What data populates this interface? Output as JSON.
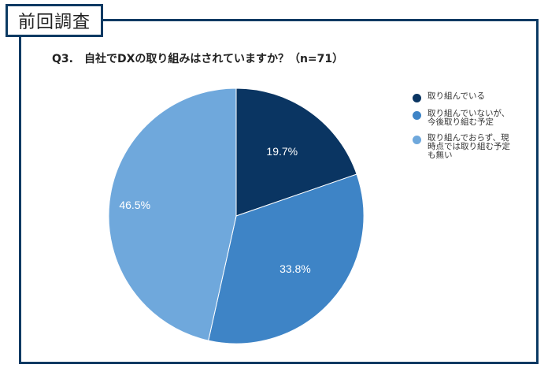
{
  "header": {
    "tag_label": "前回調査"
  },
  "chart_data": {
    "type": "pie",
    "title": "Q3.　自社でDXの取り組みはされていますか？（n=71）",
    "categories": [
      "取り組んでいる",
      "取り組んでいないが、\n今後取り組む予定",
      "取り組んでおらず、現\n時点では取り組む予定\nも無い"
    ],
    "values": [
      19.7,
      33.8,
      46.5
    ],
    "labels": [
      "19.7%",
      "33.8%",
      "46.5%"
    ],
    "colors": [
      "#0a3562",
      "#3e84c6",
      "#6fa8dc"
    ],
    "legend_position": "right",
    "start_angle": "top",
    "direction": "clockwise"
  }
}
